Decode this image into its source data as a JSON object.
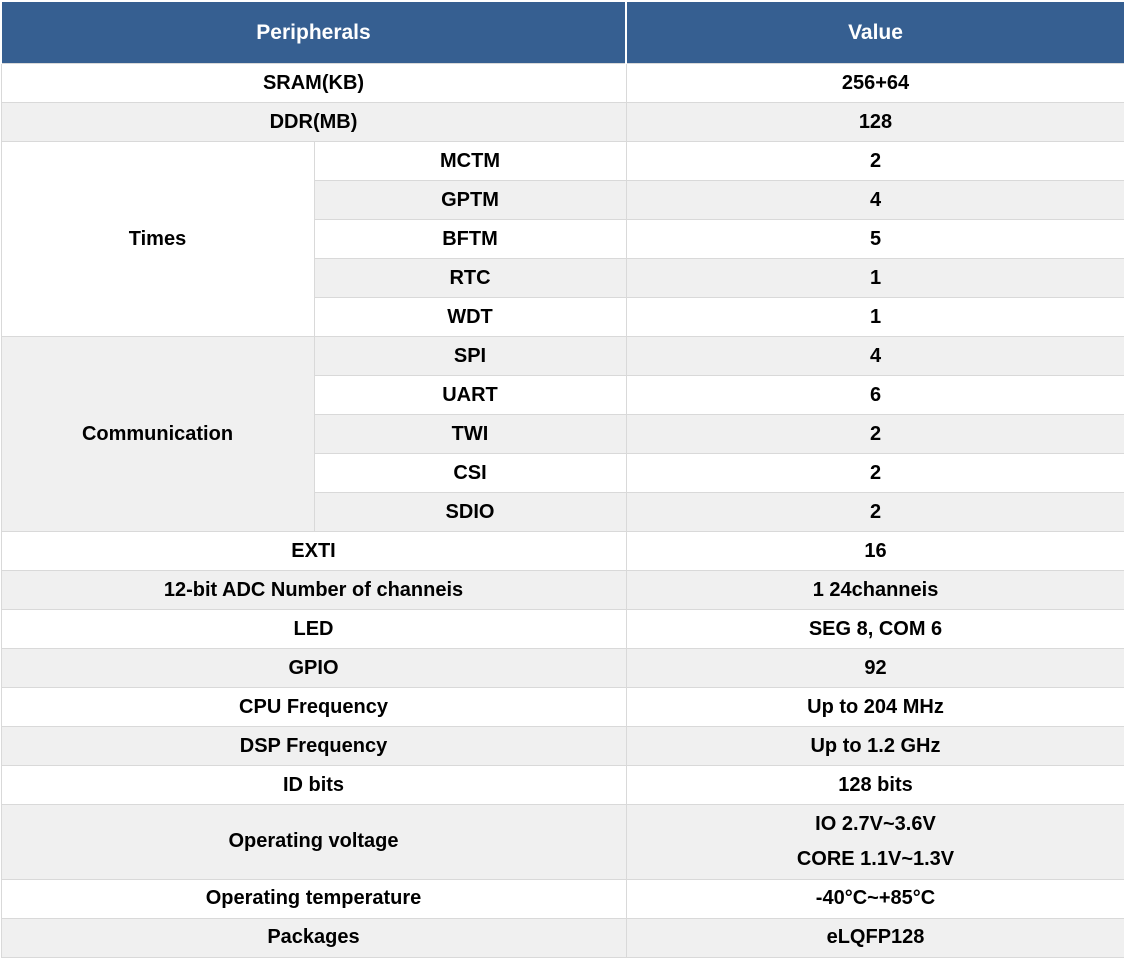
{
  "table": {
    "colors": {
      "header_bg": "#365F91",
      "header_text": "#FFFFFF",
      "row_bg": "#FFFFFF",
      "stripe_bg": "#F0F0F0",
      "border": "#D9D9D9",
      "text": "#000000"
    },
    "header": {
      "peripherals": "Peripherals",
      "value": "Value"
    },
    "rows": [
      {
        "kind": "simple",
        "label": "SRAM(KB)",
        "value": "256+64",
        "shade": "white"
      },
      {
        "kind": "simple",
        "label": "DDR(MB)",
        "value": "128",
        "shade": "gray"
      },
      {
        "kind": "group",
        "label": "Times",
        "shade": "white",
        "items": [
          {
            "label": "MCTM",
            "value": "2",
            "shade": "white"
          },
          {
            "label": "GPTM",
            "value": "4",
            "shade": "gray"
          },
          {
            "label": "BFTM",
            "value": "5",
            "shade": "white"
          },
          {
            "label": "RTC",
            "value": "1",
            "shade": "gray"
          },
          {
            "label": "WDT",
            "value": "1",
            "shade": "white"
          }
        ]
      },
      {
        "kind": "group",
        "label": "Communication",
        "shade": "gray",
        "items": [
          {
            "label": "SPI",
            "value": "4",
            "shade": "gray"
          },
          {
            "label": "UART",
            "value": "6",
            "shade": "white"
          },
          {
            "label": "TWI",
            "value": "2",
            "shade": "gray"
          },
          {
            "label": "CSI",
            "value": "2",
            "shade": "white"
          },
          {
            "label": "SDIO",
            "value": "2",
            "shade": "gray"
          }
        ]
      },
      {
        "kind": "simple",
        "label": "EXTI",
        "value": "16",
        "shade": "white"
      },
      {
        "kind": "simple",
        "label": "12-bit ADC Number of channeis",
        "value": "1 24channeis",
        "shade": "gray"
      },
      {
        "kind": "simple",
        "label": "LED",
        "value": "SEG 8, COM 6",
        "shade": "white"
      },
      {
        "kind": "simple",
        "label": "GPIO",
        "value": "92",
        "shade": "gray"
      },
      {
        "kind": "simple",
        "label": "CPU Frequency",
        "value": "Up to 204 MHz",
        "shade": "white"
      },
      {
        "kind": "simple",
        "label": "DSP Frequency",
        "value": "Up to 1.2 GHz",
        "shade": "gray"
      },
      {
        "kind": "simple",
        "label": "ID bits",
        "value": "128 bits",
        "shade": "white"
      },
      {
        "kind": "simple",
        "label": "Operating voltage",
        "value": "IO 2.7V~3.6V\nCORE 1.1V~1.3V",
        "shade": "gray",
        "tall": true
      },
      {
        "kind": "simple",
        "label": "Operating temperature",
        "value": "-40°C~+85°C",
        "shade": "white"
      },
      {
        "kind": "simple",
        "label": "Packages",
        "value": "eLQFP128",
        "shade": "gray"
      }
    ]
  }
}
